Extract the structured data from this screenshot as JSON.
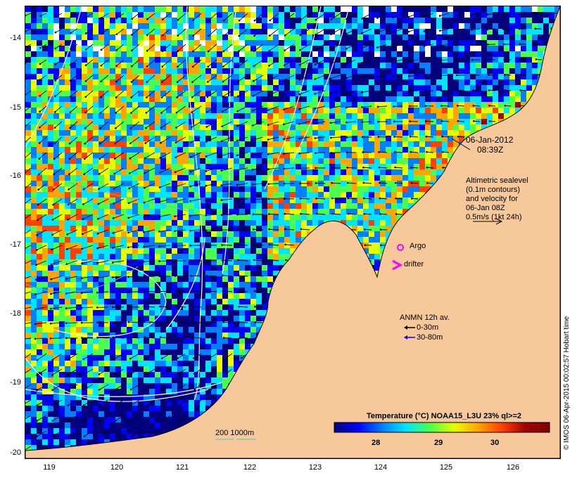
{
  "map": {
    "lat_ticks": [
      "-14",
      "-15",
      "-16",
      "-17",
      "-18",
      "-19",
      "-20"
    ],
    "lon_ticks": [
      "119",
      "120",
      "121",
      "122",
      "123",
      "124",
      "125",
      "126"
    ],
    "lat_range": [
      -20.1,
      -13.6
    ],
    "lon_range": [
      118.65,
      126.7
    ]
  },
  "annotations": {
    "date": "06-Jan-2012",
    "time": "08:39Z",
    "altimetry_lines": [
      "Altimetric sealevel",
      "(0.1m contours)",
      "and velocity for",
      "06-Jan 08Z",
      "0.5m/s (1kt 24h)"
    ],
    "argo_label": "Argo",
    "drifter_label": "drifter",
    "anmn_title": "ANMN 12h av.",
    "anmn_shallow": "0-30m",
    "anmn_deep": "30-80m",
    "bathy_label": "200  1000m"
  },
  "colorbar": {
    "title": "Temperature (°C) NOAA15_L3U 23% ql>=2",
    "ticks": [
      "28",
      "29",
      "30"
    ],
    "tick_values": [
      28,
      29,
      30
    ],
    "range": [
      27.35,
      31.0
    ],
    "colors": [
      "#00007f",
      "#0000ff",
      "#0080ff",
      "#00e5ff",
      "#4cff4c",
      "#e5ff00",
      "#ffa500",
      "#ff4000",
      "#a00000",
      "#7f0000"
    ]
  },
  "credit": "© IMOS 06-Apr-2015 00:02:57 Hobart time",
  "colors": {
    "land": "#f7c89a",
    "coast": "#000000",
    "contour": "#ffffff",
    "isobath": "#40c8c8",
    "argo": "#ff00ff",
    "drifter": "#ff00ff",
    "anmn_shallow": "#000000",
    "anmn_deep": "#0000ff"
  }
}
